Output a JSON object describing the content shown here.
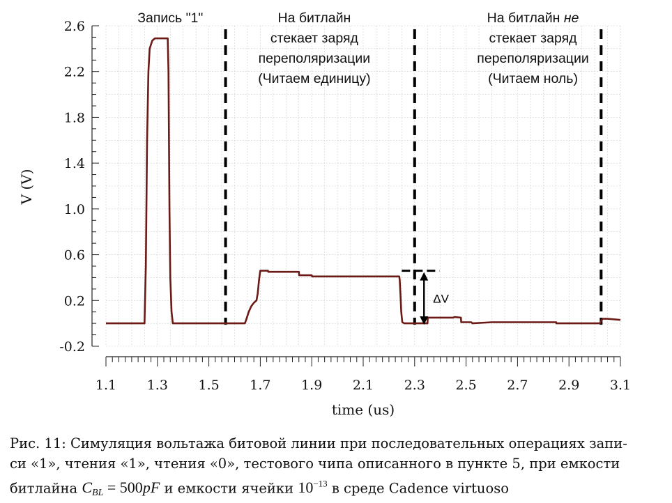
{
  "chart_data": {
    "type": "line",
    "xlabel": "time (us)",
    "ylabel": "V (V)",
    "xlim": [
      1.1,
      3.1
    ],
    "ylim": [
      -0.2,
      2.6
    ],
    "xticks": [
      1.1,
      1.3,
      1.5,
      1.7,
      1.9,
      2.1,
      2.3,
      2.5,
      2.7,
      2.9,
      3.1
    ],
    "xtick_labels": [
      "1.1",
      "1.3",
      "1.5",
      "1.7",
      "1.9",
      "2.1",
      "2.3",
      "2.5",
      "2.7",
      "2.9",
      "3.1"
    ],
    "yticks": [
      -0.2,
      0.2,
      0.6,
      1.0,
      1.4,
      1.8,
      2.2,
      2.6
    ],
    "ytick_labels": [
      "-0.2",
      "0.2",
      "0.6",
      "1.0",
      "1.4",
      "1.8",
      "2.2",
      "2.6"
    ],
    "grid": true,
    "line_color": "#6b1a16",
    "series": [
      {
        "x": [
          1.1,
          1.25,
          1.255,
          1.26,
          1.265,
          1.27,
          1.28,
          1.29,
          1.3,
          1.34,
          1.343,
          1.347,
          1.35,
          1.355,
          1.36,
          1.4,
          1.5,
          1.6,
          1.64,
          1.645,
          1.655,
          1.665,
          1.675,
          1.685,
          1.69,
          1.695,
          1.7,
          1.73,
          1.731,
          1.8,
          1.801,
          1.85,
          1.851,
          1.9,
          1.901,
          2.0,
          2.001,
          2.1,
          2.2,
          2.24,
          2.242,
          2.245,
          2.248,
          2.252,
          2.26,
          2.3,
          2.35,
          2.351,
          2.4,
          2.45,
          2.455,
          2.48,
          2.481,
          2.52,
          2.525,
          2.6,
          2.7,
          2.8,
          2.85,
          2.851,
          2.94,
          2.942,
          3.0,
          3.01,
          3.02,
          3.03,
          3.05,
          3.1
        ],
        "y": [
          0.0,
          0.0,
          0.5,
          1.6,
          2.2,
          2.4,
          2.47,
          2.49,
          2.49,
          2.49,
          2.2,
          1.0,
          0.4,
          0.1,
          0.0,
          0.0,
          0.0,
          0.0,
          0.0,
          0.03,
          0.1,
          0.15,
          0.18,
          0.2,
          0.26,
          0.38,
          0.46,
          0.46,
          0.45,
          0.45,
          0.45,
          0.45,
          0.42,
          0.42,
          0.41,
          0.41,
          0.41,
          0.41,
          0.41,
          0.41,
          0.38,
          0.25,
          0.1,
          0.01,
          0.0,
          0.0,
          0.0,
          0.05,
          0.05,
          0.05,
          0.055,
          0.05,
          0.01,
          0.01,
          0.0,
          0.01,
          0.01,
          0.01,
          0.01,
          0.0,
          0.0,
          0.0,
          0.0,
          0.0,
          0.0,
          0.04,
          0.04,
          0.03
        ]
      }
    ],
    "markers_vertical": [
      1.565,
      2.3,
      3.025
    ],
    "delta_v": {
      "x": 2.35,
      "y_top": 0.46,
      "y_bottom": 0.0,
      "dash_from": 2.25,
      "dash_to": 2.37,
      "label": "ΔV"
    },
    "annotations": [
      {
        "lines": [
          "Запись \"1\""
        ],
        "x": 1.35,
        "y_label": "top"
      },
      {
        "lines": [
          "На битлайн",
          "стекает заряд",
          "переполяризации",
          "(Читаем единицу)"
        ],
        "x": 1.91
      },
      {
        "lines": [
          "На битлайн не",
          "стекает заряд",
          "переполяризации",
          "(Читаем ноль)"
        ],
        "x": 2.76
      }
    ]
  },
  "caption": {
    "line1": "Рис. 11: Симуляция вольтажа битовой линии при последовательных операциях запи-",
    "line2": "си «1», чтения «1», чтения «0», тестового чипа описанного в пункте 5, при емкости",
    "line3_pre": "битлайна ",
    "math_c": "C",
    "math_sub": "BL",
    "math_eq": " = 500",
    "math_unit": "pF",
    "line3_mid": " и емкости ячейки  ",
    "math_pow_base": "10",
    "math_pow_exp": "−13",
    "line3_post": " в среде Cadence virtuoso"
  }
}
